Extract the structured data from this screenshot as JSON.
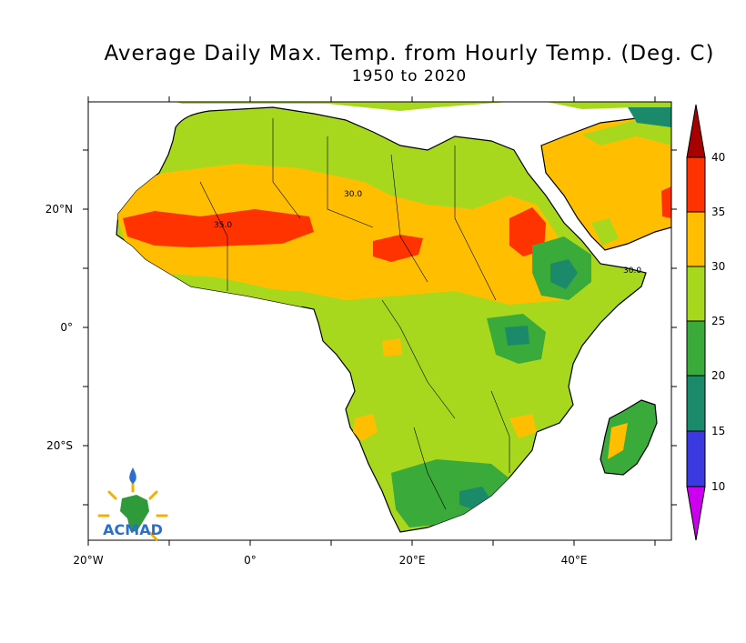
{
  "title": "Average Daily Max. Temp. from Hourly Temp. (Deg. C)",
  "subtitle": "1950 to 2020",
  "logo_text": "ACMAD",
  "x_ticks": [
    {
      "label": "20°W",
      "value": -20
    },
    {
      "label": "0°",
      "value": 0
    },
    {
      "label": "20°E",
      "value": 20
    },
    {
      "label": "40°E",
      "value": 40
    }
  ],
  "y_ticks": [
    {
      "label": "20°N",
      "value": 20
    },
    {
      "label": "0°",
      "value": 0
    },
    {
      "label": "20°S",
      "value": -20
    }
  ],
  "colorbar": {
    "levels": [
      "10",
      "15",
      "20",
      "25",
      "30",
      "35",
      "40"
    ],
    "colors": [
      "#cc00ee",
      "#3a3ae0",
      "#1a8a6a",
      "#3aaa3a",
      "#a8d81e",
      "#ffbf00",
      "#ff3300",
      "#a80000"
    ]
  },
  "contour_labels": [
    "30.0",
    "35.0",
    "30.0"
  ],
  "chart_data": {
    "type": "map",
    "region": "Africa",
    "variable": "Average daily maximum temperature (Deg. C)",
    "period": "1950 to 2020",
    "lon_range": [
      -20,
      52
    ],
    "lat_range": [
      -36,
      38
    ],
    "levels": [
      10,
      15,
      20,
      25,
      30,
      35,
      40
    ]
  }
}
